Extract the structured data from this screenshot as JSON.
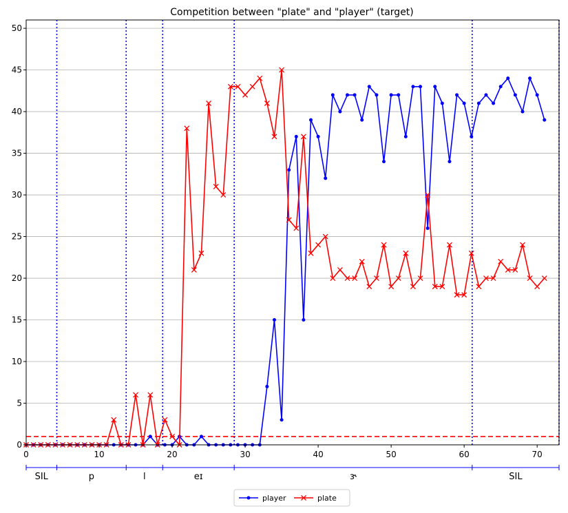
{
  "chart_data": {
    "type": "line",
    "title": "Competition between \"plate\" and \"player\" (target)",
    "xlabel": "",
    "ylabel": "",
    "xlim": [
      0,
      73
    ],
    "ylim": [
      0,
      51
    ],
    "x_ticks": [
      0,
      10,
      20,
      30,
      40,
      50,
      60,
      70
    ],
    "y_ticks": [
      0,
      5,
      10,
      15,
      20,
      25,
      30,
      35,
      40,
      45,
      50
    ],
    "grid": "horizontal",
    "legend_position": "bottom-center",
    "threshold": {
      "y": 1,
      "style": "dashed",
      "color": "#ff0000"
    },
    "series": [
      {
        "name": "player",
        "color": "#0000ff",
        "marker": "dot",
        "x": [
          0,
          1,
          2,
          3,
          4,
          5,
          6,
          7,
          8,
          9,
          10,
          11,
          12,
          13,
          14,
          15,
          16,
          17,
          18,
          19,
          20,
          21,
          22,
          23,
          24,
          25,
          26,
          27,
          28,
          29,
          30,
          31,
          32,
          33,
          34,
          35,
          36,
          37,
          38,
          39,
          40,
          41,
          42,
          43,
          44,
          45,
          46,
          47,
          48,
          49,
          50,
          51,
          52,
          53,
          54,
          55,
          56,
          57,
          58,
          59,
          60,
          61,
          62,
          63,
          64,
          65,
          66,
          67,
          68,
          69,
          70,
          71
        ],
        "values": [
          0,
          0,
          0,
          0,
          0,
          0,
          0,
          0,
          0,
          0,
          0,
          0,
          0,
          0,
          0,
          0,
          0,
          1,
          0,
          0,
          0,
          1,
          0,
          0,
          1,
          0,
          0,
          0,
          0,
          0,
          0,
          0,
          0,
          7,
          15,
          3,
          33,
          37,
          15,
          39,
          37,
          32,
          42,
          40,
          42,
          42,
          39,
          43,
          42,
          34,
          42,
          42,
          37,
          43,
          43,
          26,
          43,
          41,
          34,
          42,
          41,
          37,
          41,
          42,
          41,
          43,
          44,
          42,
          40,
          44,
          42,
          39
        ]
      },
      {
        "name": "plate",
        "color": "#ff0000",
        "marker": "x",
        "x": [
          0,
          1,
          2,
          3,
          4,
          5,
          6,
          7,
          8,
          9,
          10,
          11,
          12,
          13,
          14,
          15,
          16,
          17,
          18,
          19,
          20,
          21,
          22,
          23,
          24,
          25,
          26,
          27,
          28,
          29,
          30,
          31,
          32,
          33,
          34,
          35,
          36,
          37,
          38,
          39,
          40,
          41,
          42,
          43,
          44,
          45,
          46,
          47,
          48,
          49,
          50,
          51,
          52,
          53,
          54,
          55,
          56,
          57,
          58,
          59,
          60,
          61,
          62,
          63,
          64,
          65,
          66,
          67,
          68,
          69,
          70,
          71
        ],
        "values": [
          0,
          0,
          0,
          0,
          0,
          0,
          0,
          0,
          0,
          0,
          0,
          0,
          3,
          0,
          0,
          6,
          0,
          6,
          0,
          3,
          1,
          0,
          38,
          21,
          23,
          41,
          31,
          30,
          43,
          43,
          42,
          43,
          44,
          41,
          37,
          45,
          27,
          26,
          37,
          23,
          24,
          25,
          20,
          21,
          20,
          20,
          22,
          19,
          20,
          24,
          19,
          20,
          23,
          19,
          20,
          30,
          19,
          19,
          24,
          18,
          18,
          23,
          19,
          20,
          20,
          22,
          21,
          21,
          24,
          20,
          19,
          20
        ]
      }
    ],
    "phone_boundaries": [
      4.2,
      13.7,
      18.7,
      28.5,
      61.1,
      73
    ],
    "phone_segments": [
      {
        "label": "SIL",
        "start": 0,
        "end": 4.2
      },
      {
        "label": "p",
        "start": 4.2,
        "end": 13.7
      },
      {
        "label": "l",
        "start": 13.7,
        "end": 18.7
      },
      {
        "label": "eɪ",
        "start": 18.7,
        "end": 28.5
      },
      {
        "label": "ɝ",
        "start": 28.5,
        "end": 61.1
      },
      {
        "label": "SIL",
        "start": 61.1,
        "end": 73
      }
    ]
  }
}
